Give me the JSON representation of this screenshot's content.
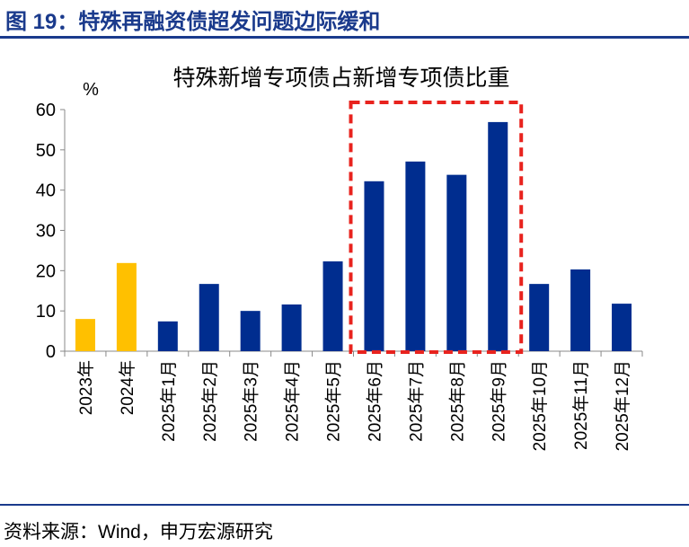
{
  "figure_title": "图 19：特殊再融资债超发问题边际缓和",
  "source": "资料来源：Wind，申万宏源研究",
  "colors": {
    "highlight": "#FFC000",
    "main": "#002D8F",
    "box": "#E8231E",
    "rule": "#1a3a8c"
  },
  "chart_data": {
    "type": "bar",
    "title": "特殊新增专项债占新增专项债比重",
    "ylabel": "%",
    "ylim": [
      0,
      60
    ],
    "yticks": [
      0,
      10,
      20,
      30,
      40,
      50,
      60
    ],
    "grid": false,
    "categories": [
      "2023年",
      "2024年",
      "2025年1月",
      "2025年2月",
      "2025年3月",
      "2025年4月",
      "2025年5月",
      "2025年6月",
      "2025年7月",
      "2025年8月",
      "2025年9月",
      "2025年10月",
      "2025年11月",
      "2025年12月"
    ],
    "values": [
      8.0,
      21.9,
      7.4,
      16.7,
      10.0,
      11.6,
      22.3,
      42.2,
      47.1,
      43.8,
      56.9,
      16.7,
      20.3,
      11.8
    ],
    "bar_colors": [
      "#FFC000",
      "#FFC000",
      "#002D8F",
      "#002D8F",
      "#002D8F",
      "#002D8F",
      "#002D8F",
      "#002D8F",
      "#002D8F",
      "#002D8F",
      "#002D8F",
      "#002D8F",
      "#002D8F",
      "#002D8F"
    ],
    "highlight_box": {
      "from": "2025年6月",
      "to": "2025年9月"
    }
  }
}
